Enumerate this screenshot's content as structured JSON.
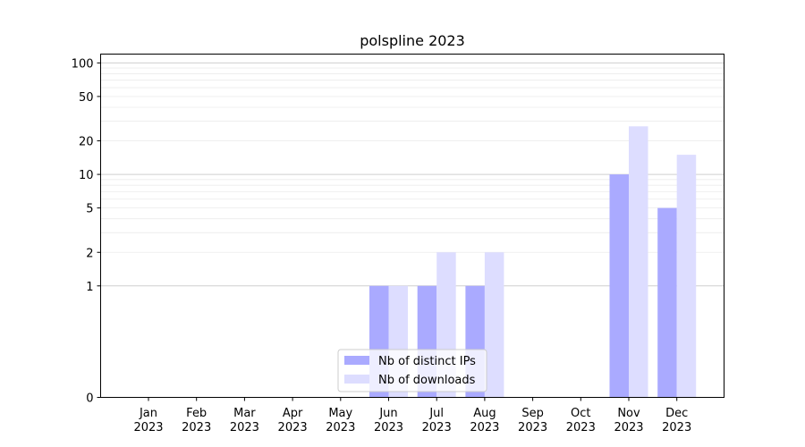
{
  "chart_data": {
    "type": "bar",
    "title": "polspline 2023",
    "xlabel": "",
    "ylabel": "",
    "y_scale": "symlog",
    "ylim": [
      0,
      120
    ],
    "y_ticks": [
      {
        "value": 0,
        "label": "0"
      },
      {
        "value": 1,
        "label": "1"
      },
      {
        "value": 2,
        "label": "2"
      },
      {
        "value": 5,
        "label": "5"
      },
      {
        "value": 10,
        "label": "10"
      },
      {
        "value": 20,
        "label": "20"
      },
      {
        "value": 50,
        "label": "50"
      },
      {
        "value": 100,
        "label": "100"
      }
    ],
    "categories": [
      {
        "month": "Jan",
        "year": "2023"
      },
      {
        "month": "Feb",
        "year": "2023"
      },
      {
        "month": "Mar",
        "year": "2023"
      },
      {
        "month": "Apr",
        "year": "2023"
      },
      {
        "month": "May",
        "year": "2023"
      },
      {
        "month": "Jun",
        "year": "2023"
      },
      {
        "month": "Jul",
        "year": "2023"
      },
      {
        "month": "Aug",
        "year": "2023"
      },
      {
        "month": "Sep",
        "year": "2023"
      },
      {
        "month": "Oct",
        "year": "2023"
      },
      {
        "month": "Nov",
        "year": "2023"
      },
      {
        "month": "Dec",
        "year": "2023"
      }
    ],
    "series": [
      {
        "name": "Nb of distinct IPs",
        "color": "#aaaaff",
        "values": [
          0,
          0,
          0,
          0,
          0,
          1,
          1,
          1,
          0,
          0,
          10,
          5
        ]
      },
      {
        "name": "Nb of downloads",
        "color": "#ddddff",
        "values": [
          0,
          0,
          0,
          0,
          0,
          1,
          2,
          2,
          0,
          0,
          27,
          15
        ]
      }
    ],
    "grid": true,
    "legend_position": "lower center"
  }
}
